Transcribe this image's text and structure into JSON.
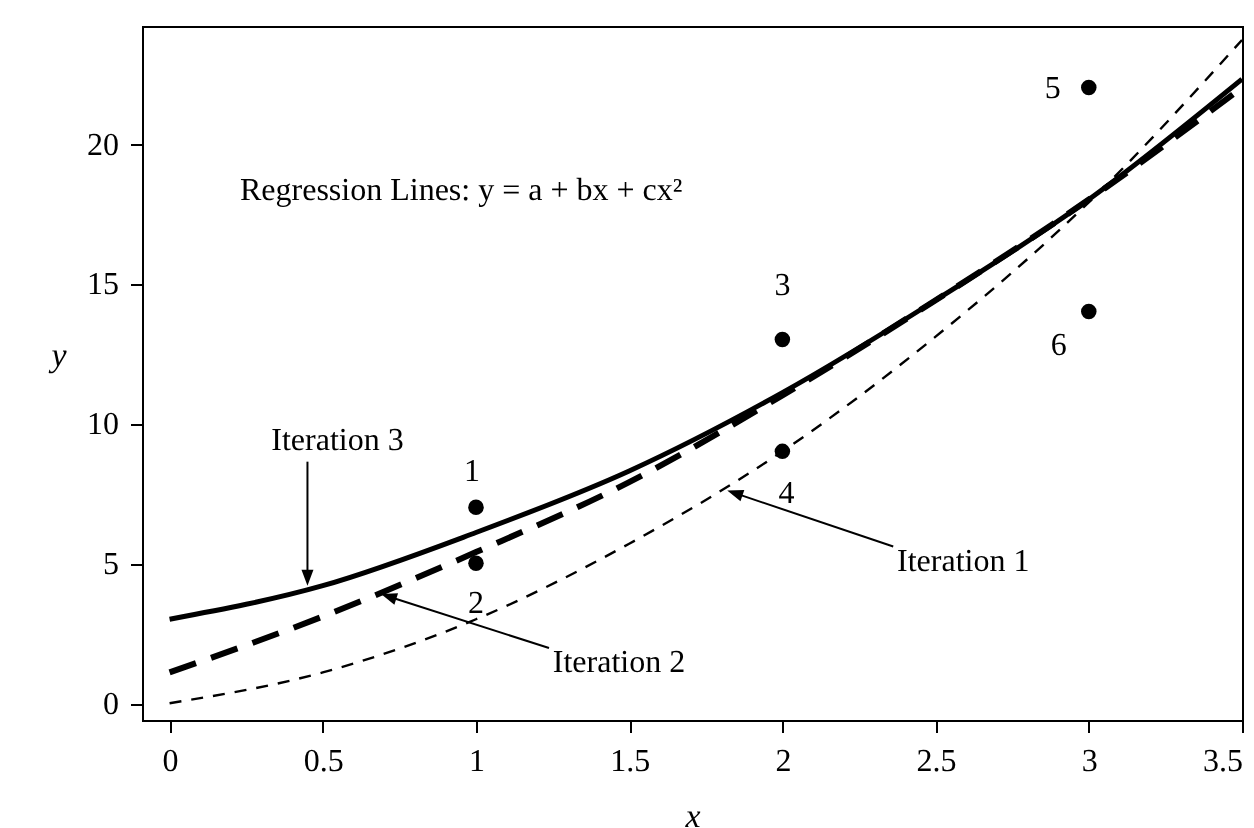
{
  "chart_data": {
    "type": "line",
    "xlabel": "x",
    "ylabel": "y",
    "xlim": [
      -0.09,
      3.5
    ],
    "ylim": [
      -0.6,
      24.2
    ],
    "xticks": [
      0,
      0.5,
      1,
      1.5,
      2,
      2.5,
      3,
      3.5
    ],
    "yticks": [
      0,
      5,
      10,
      15,
      20
    ],
    "grid": false,
    "series": [
      {
        "color": "#000000",
        "line_style": "dashed",
        "x": [
          0,
          0.5,
          1,
          1.5,
          2,
          2.5,
          3,
          3.5
        ],
        "values": [
          0,
          1.1,
          3.0,
          5.7,
          9.0,
          13.1,
          17.9,
          23.7
        ]
      },
      {
        "color": "#000000",
        "line_style": "dashed",
        "x": [
          0,
          0.5,
          1,
          1.5,
          2,
          2.5,
          3,
          3.5
        ],
        "values": [
          1.1,
          3.1,
          5.4,
          7.9,
          11.0,
          14.4,
          18.0,
          22.0
        ]
      },
      {
        "color": "#000000",
        "line_style": "solid",
        "x": [
          0,
          0.5,
          1,
          1.5,
          2,
          2.5,
          3,
          3.5
        ],
        "values": [
          3.0,
          4.2,
          6.1,
          8.3,
          11.1,
          14.4,
          18.0,
          22.3
        ]
      },
      {
        "type": "scatter",
        "color": "#000000",
        "marker": "circle",
        "x": [
          1,
          1,
          2,
          2,
          3,
          3
        ],
        "values": [
          7,
          5,
          13,
          9,
          22,
          14
        ]
      }
    ],
    "annotations": [
      "Regression Lines: y = a + bx  + cx²",
      {
        "text": "1",
        "x": 1,
        "y": 7
      },
      {
        "text": "2",
        "x": 1,
        "y": 5
      },
      {
        "text": "3",
        "x": 2,
        "y": 13
      },
      {
        "text": "4",
        "x": 2,
        "y": 9
      },
      {
        "text": "5",
        "x": 3,
        "y": 22
      },
      {
        "text": "6",
        "x": 3,
        "y": 14
      },
      {
        "text": "Iteration 3",
        "x": 0.45,
        "y": 4.2
      },
      {
        "text": "Iteration 2",
        "x": 0.69,
        "y": 3.9
      },
      {
        "text": "Iteration 1",
        "x": 1.82,
        "y": 7.6
      }
    ]
  }
}
